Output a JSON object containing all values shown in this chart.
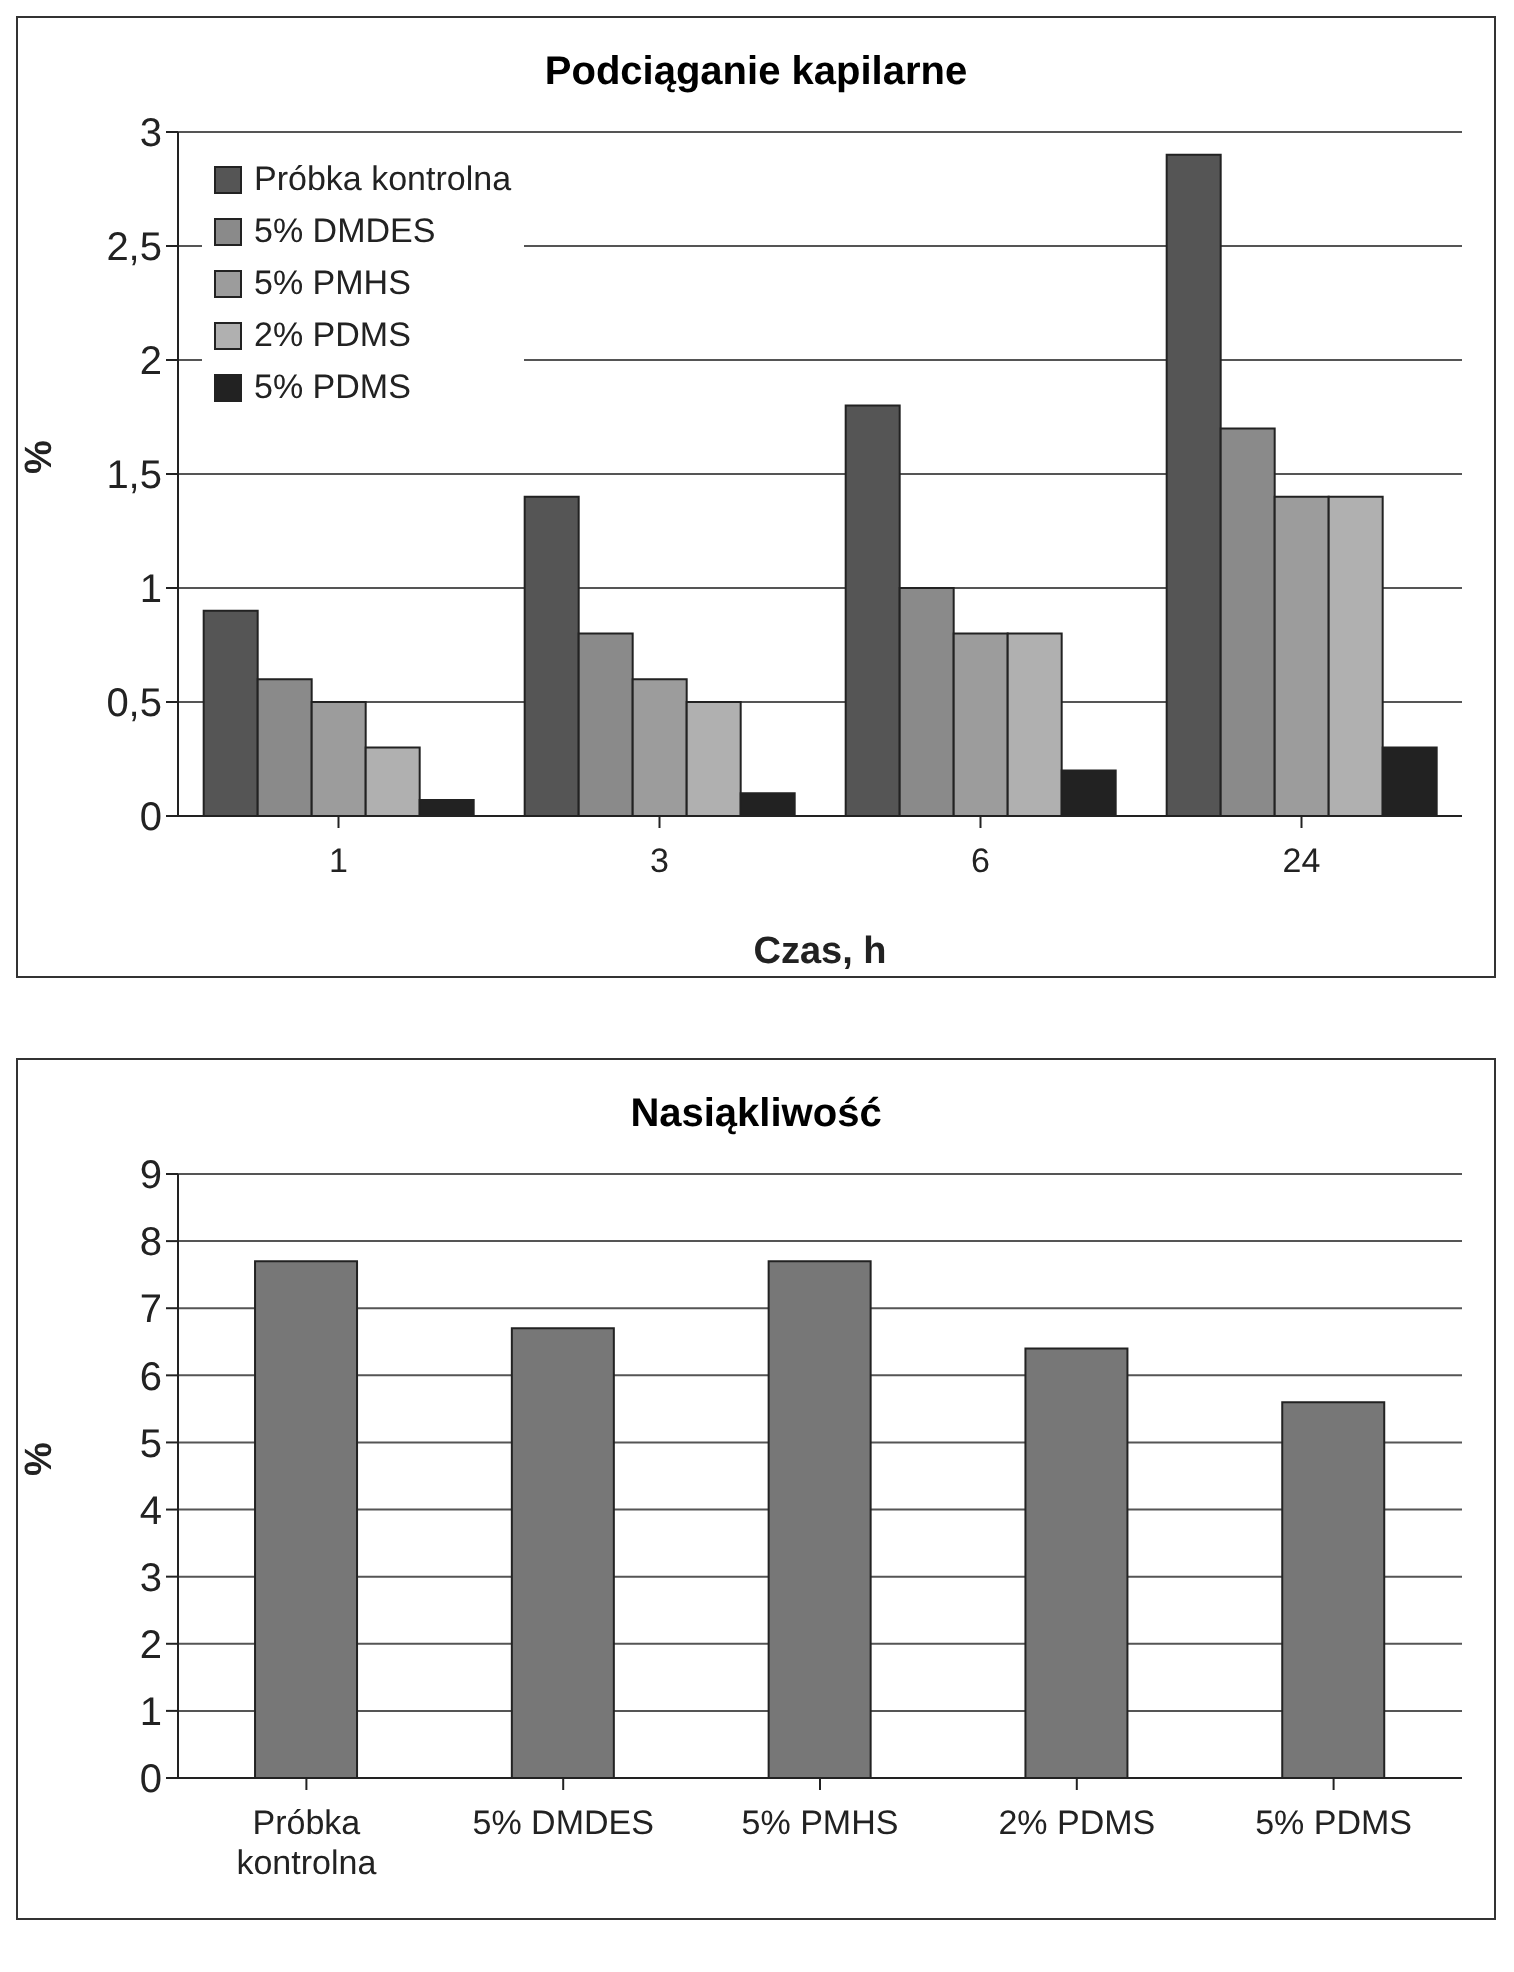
{
  "chart_data": [
    {
      "type": "bar",
      "title": "Podciąganie kapilarne",
      "xlabel": "Czas, h",
      "ylabel": "%",
      "categories": [
        "1",
        "3",
        "6",
        "24"
      ],
      "series": [
        {
          "name": "Próbka kontrolna",
          "color": "#555555",
          "values": [
            0.9,
            1.4,
            1.8,
            2.9
          ]
        },
        {
          "name": "5% DMDES",
          "color": "#8a8a8a",
          "values": [
            0.6,
            0.8,
            1.0,
            1.7
          ]
        },
        {
          "name": "5% PMHS",
          "color": "#9c9c9c",
          "values": [
            0.5,
            0.6,
            0.8,
            1.4
          ]
        },
        {
          "name": "2% PDMS",
          "color": "#b0b0b0",
          "values": [
            0.3,
            0.5,
            0.8,
            1.4
          ]
        },
        {
          "name": "5% PDMS",
          "color": "#222222",
          "values": [
            0.07,
            0.1,
            0.2,
            0.3
          ]
        }
      ],
      "ylim": [
        0,
        3
      ],
      "yticks": [
        0,
        {
          "value": 0.5,
          "label": "0,5"
        },
        1,
        {
          "value": 1.5,
          "label": "1,5"
        },
        2,
        {
          "value": 2.5,
          "label": "2,5"
        },
        3
      ],
      "grid": "y",
      "legend": "top left"
    },
    {
      "type": "bar",
      "title": "Nasiąkliwość",
      "ylabel": "%",
      "categories": [
        "Próbka kontrolna",
        "5% DMDES",
        "5% PMHS",
        "2% PDMS",
        "5% PDMS"
      ],
      "series": [
        {
          "color": "#777777",
          "values": [
            7.7,
            6.7,
            7.7,
            6.4,
            5.6
          ]
        }
      ],
      "ylim": [
        0,
        9
      ],
      "yticks": [
        0,
        1,
        2,
        3,
        4,
        5,
        6,
        7,
        8,
        9
      ],
      "grid": "y"
    }
  ]
}
